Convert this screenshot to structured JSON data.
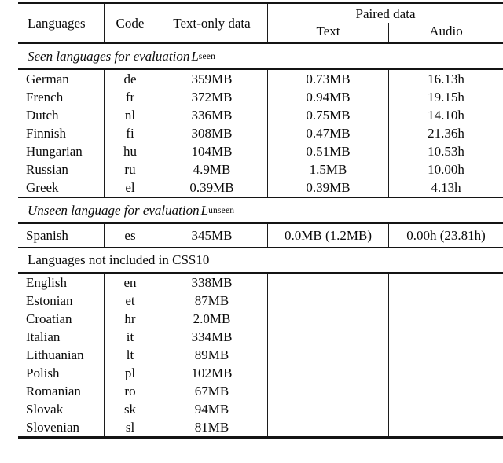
{
  "table": {
    "header": {
      "languages": "Languages",
      "code": "Code",
      "text_only": "Text-only data",
      "paired": "Paired data",
      "paired_text": "Text",
      "paired_audio": "Audio"
    },
    "sections": [
      {
        "title_text": "Seen languages for evaluation ",
        "title_math": "L",
        "title_sub": "seen",
        "rows": [
          [
            "German",
            "de",
            "359MB",
            "0.73MB",
            "16.13h"
          ],
          [
            "French",
            "fr",
            "372MB",
            "0.94MB",
            "19.15h"
          ],
          [
            "Dutch",
            "nl",
            "336MB",
            "0.75MB",
            "14.10h"
          ],
          [
            "Finnish",
            "fi",
            "308MB",
            "0.47MB",
            "21.36h"
          ],
          [
            "Hungarian",
            "hu",
            "104MB",
            "0.51MB",
            "10.53h"
          ],
          [
            "Russian",
            "ru",
            "4.9MB",
            "1.5MB",
            "10.00h"
          ],
          [
            "Greek",
            "el",
            "0.39MB",
            "0.39MB",
            "4.13h"
          ]
        ]
      },
      {
        "title_text": "Unseen language for evaluation ",
        "title_math": "L",
        "title_sub": "unseen",
        "rows": [
          [
            "Spanish",
            "es",
            "345MB",
            "0.0MB (1.2MB)",
            "0.00h (23.81h)"
          ]
        ]
      },
      {
        "title_text": "Languages not included in CSS10",
        "title_math": "",
        "title_sub": "",
        "rows": [
          [
            "English",
            "en",
            "338MB",
            "",
            ""
          ],
          [
            "Estonian",
            "et",
            "87MB",
            "",
            ""
          ],
          [
            "Croatian",
            "hr",
            "2.0MB",
            "",
            ""
          ],
          [
            "Italian",
            "it",
            "334MB",
            "",
            ""
          ],
          [
            "Lithuanian",
            "lt",
            "89MB",
            "",
            ""
          ],
          [
            "Polish",
            "pl",
            "102MB",
            "",
            ""
          ],
          [
            "Romanian",
            "ro",
            "67MB",
            "",
            ""
          ],
          [
            "Slovak",
            "sk",
            "94MB",
            "",
            ""
          ],
          [
            "Slovenian",
            "sl",
            "81MB",
            "",
            ""
          ]
        ]
      }
    ],
    "colors": {
      "text": "#0a0a0a",
      "rule": "#141414",
      "background": "#ffffff"
    }
  }
}
